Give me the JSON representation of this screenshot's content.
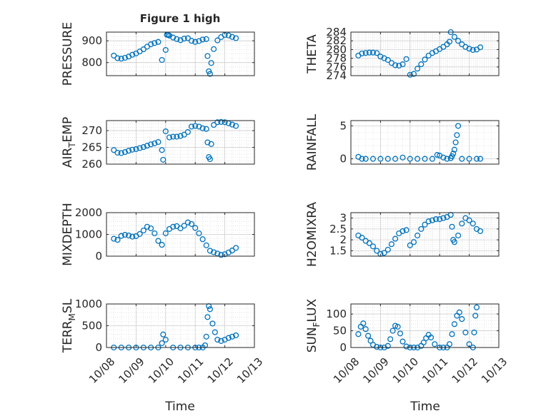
{
  "figure": {
    "title": "Figure 1 high",
    "x_tick_labels": [
      "10/08",
      "10/09",
      "10/10",
      "10/11",
      "10/12",
      "10/13"
    ],
    "x_label": "Time"
  },
  "colors": {
    "marker": "#0072bd",
    "axes": "#262626",
    "grid": "#dfdfdf"
  },
  "chart_data": [
    {
      "type": "scatter",
      "id": "pressure",
      "ylabel": "PRESSURE",
      "title": "Figure 1 high",
      "xlabel": "",
      "xlim": [
        "10/08",
        "10/13"
      ],
      "ylim": [
        740,
        940
      ],
      "yticks": [
        800,
        900
      ],
      "ytick_labels": [
        "800",
        "900"
      ],
      "grid": true,
      "x": [
        "10/08 06:00",
        "10/08 09:00",
        "10/08 12:00",
        "10/08 15:00",
        "10/08 18:00",
        "10/08 21:00",
        "10/09 00:00",
        "10/09 03:00",
        "10/09 06:00",
        "10/09 09:00",
        "10/09 12:00",
        "10/09 15:00",
        "10/09 18:00",
        "10/09 21:00",
        "10/10 00:00",
        "10/10 01:00",
        "10/10 02:00",
        "10/10 03:00",
        "10/10 06:00",
        "10/10 09:00",
        "10/10 12:00",
        "10/10 15:00",
        "10/10 18:00",
        "10/10 21:00",
        "10/11 00:00",
        "10/11 03:00",
        "10/11 06:00",
        "10/11 09:00",
        "10/11 10:00",
        "10/11 11:00",
        "10/11 12:00",
        "10/11 13:00",
        "10/11 15:00",
        "10/11 18:00",
        "10/11 21:00",
        "10/12 00:00",
        "10/12 03:00",
        "10/12 06:00",
        "10/12 09:00"
      ],
      "y": [
        832,
        820,
        818,
        822,
        828,
        836,
        842,
        851,
        861,
        873,
        884,
        890,
        895,
        812,
        858,
        928,
        927,
        924,
        915,
        908,
        903,
        910,
        912,
        900,
        895,
        899,
        906,
        908,
        830,
        760,
        748,
        798,
        862,
        902,
        917,
        927,
        925,
        918,
        912
      ]
    },
    {
      "type": "scatter",
      "id": "theta",
      "ylabel": "THETA",
      "xlabel": "",
      "xlim": [
        "10/08",
        "10/13"
      ],
      "ylim": [
        274,
        284
      ],
      "yticks": [
        274,
        276,
        278,
        280,
        282,
        284
      ],
      "ytick_labels": [
        "274",
        "276",
        "278",
        "280",
        "282",
        "284"
      ],
      "grid": true,
      "x": [
        "10/08 06:00",
        "10/08 09:00",
        "10/08 12:00",
        "10/08 15:00",
        "10/08 18:00",
        "10/08 21:00",
        "10/09 00:00",
        "10/09 03:00",
        "10/09 06:00",
        "10/09 09:00",
        "10/09 12:00",
        "10/09 15:00",
        "10/09 18:00",
        "10/09 21:00",
        "10/10 00:00",
        "10/10 03:00",
        "10/10 06:00",
        "10/10 09:00",
        "10/10 12:00",
        "10/10 15:00",
        "10/10 18:00",
        "10/10 21:00",
        "10/11 00:00",
        "10/11 03:00",
        "10/11 06:00",
        "10/11 08:00",
        "10/11 09:00",
        "10/11 12:00",
        "10/11 15:00",
        "10/11 18:00",
        "10/11 21:00",
        "10/12 00:00",
        "10/12 03:00",
        "10/12 06:00",
        "10/12 09:00"
      ],
      "y": [
        278.6,
        279.1,
        279.2,
        279.3,
        279.3,
        279.2,
        278.4,
        278.0,
        277.6,
        276.9,
        276.4,
        276.3,
        276.6,
        277.8,
        274.2,
        274.4,
        275.6,
        276.6,
        277.7,
        278.6,
        279.2,
        279.6,
        280.1,
        280.6,
        281.2,
        281.8,
        284.0,
        282.9,
        282.0,
        281.2,
        280.6,
        280.2,
        279.9,
        280.0,
        280.5
      ]
    },
    {
      "type": "scatter",
      "id": "air_temp",
      "ylabel": "AIR_TEMP",
      "ylabel_main": "AIR",
      "ylabel_sub": "T",
      "ylabel_rest": "EMP",
      "xlabel": "",
      "xlim": [
        "10/08",
        "10/13"
      ],
      "ylim": [
        260,
        273
      ],
      "yticks": [
        260,
        265,
        270
      ],
      "ytick_labels": [
        "260",
        "265",
        "270"
      ],
      "grid": true,
      "x": [
        "10/08 06:00",
        "10/08 09:00",
        "10/08 12:00",
        "10/08 15:00",
        "10/08 18:00",
        "10/08 21:00",
        "10/09 00:00",
        "10/09 03:00",
        "10/09 06:00",
        "10/09 09:00",
        "10/09 12:00",
        "10/09 15:00",
        "10/09 18:00",
        "10/09 21:00",
        "10/09 22:00",
        "10/10 00:00",
        "10/10 03:00",
        "10/10 06:00",
        "10/10 09:00",
        "10/10 12:00",
        "10/10 15:00",
        "10/10 18:00",
        "10/10 21:00",
        "10/11 00:00",
        "10/11 03:00",
        "10/11 06:00",
        "10/11 09:00",
        "10/11 10:00",
        "10/11 11:00",
        "10/11 12:00",
        "10/11 13:00",
        "10/11 15:00",
        "10/11 18:00",
        "10/11 21:00",
        "10/12 00:00",
        "10/12 03:00",
        "10/12 06:00",
        "10/12 09:00"
      ],
      "y": [
        264.2,
        263.4,
        263.3,
        263.6,
        264.0,
        264.3,
        264.5,
        264.8,
        265.1,
        265.5,
        265.9,
        266.2,
        266.6,
        264.2,
        261.3,
        269.8,
        268.0,
        268.2,
        268.2,
        268.4,
        268.8,
        269.6,
        271.2,
        271.4,
        271.2,
        270.7,
        270.5,
        266.5,
        262.1,
        261.5,
        266.0,
        271.7,
        272.5,
        272.6,
        272.5,
        272.2,
        271.8,
        271.4
      ]
    },
    {
      "type": "scatter",
      "id": "rainfall",
      "ylabel": "RAINFALL",
      "xlabel": "",
      "xlim": [
        "10/08",
        "10/13"
      ],
      "ylim": [
        -0.8,
        5.8
      ],
      "yticks": [
        0,
        5
      ],
      "ytick_labels": [
        "0",
        "5"
      ],
      "grid": true,
      "x": [
        "10/08 06:00",
        "10/08 09:00",
        "10/08 12:00",
        "10/08 18:00",
        "10/09 00:00",
        "10/09 06:00",
        "10/09 12:00",
        "10/09 18:00",
        "10/10 00:00",
        "10/10 06:00",
        "10/10 12:00",
        "10/10 18:00",
        "10/10 22:00",
        "10/11 00:00",
        "10/11 03:00",
        "10/11 06:00",
        "10/11 09:00",
        "10/11 10:00",
        "10/11 11:00",
        "10/11 12:00",
        "10/11 13:00",
        "10/11 14:00",
        "10/11 15:00",
        "10/11 18:00",
        "10/12 00:00",
        "10/12 06:00",
        "10/12 09:00"
      ],
      "y": [
        0.3,
        0.0,
        0.0,
        0.0,
        0.0,
        0.0,
        0.0,
        0.2,
        0.0,
        0.0,
        0.0,
        0.0,
        0.6,
        0.5,
        0.2,
        0.0,
        0.1,
        0.4,
        0.8,
        1.4,
        2.5,
        3.6,
        5.0,
        0.0,
        0.0,
        0.0,
        0.0
      ]
    },
    {
      "type": "scatter",
      "id": "mixdepth",
      "ylabel": "MIXDEPTH",
      "xlabel": "",
      "xlim": [
        "10/08",
        "10/13"
      ],
      "ylim": [
        0,
        2000
      ],
      "yticks": [
        0,
        1000,
        2000
      ],
      "ytick_labels": [
        "0",
        "1000",
        "2000"
      ],
      "grid": true,
      "x": [
        "10/08 06:00",
        "10/08 09:00",
        "10/08 12:00",
        "10/08 15:00",
        "10/08 18:00",
        "10/08 21:00",
        "10/09 00:00",
        "10/09 03:00",
        "10/09 06:00",
        "10/09 09:00",
        "10/09 12:00",
        "10/09 15:00",
        "10/09 18:00",
        "10/09 21:00",
        "10/10 00:00",
        "10/10 03:00",
        "10/10 06:00",
        "10/10 09:00",
        "10/10 12:00",
        "10/10 15:00",
        "10/10 18:00",
        "10/10 21:00",
        "10/11 00:00",
        "10/11 03:00",
        "10/11 06:00",
        "10/11 09:00",
        "10/11 12:00",
        "10/11 15:00",
        "10/11 18:00",
        "10/11 21:00",
        "10/12 00:00",
        "10/12 03:00",
        "10/12 06:00",
        "10/12 09:00"
      ],
      "y": [
        800,
        750,
        930,
        980,
        950,
        900,
        920,
        1020,
        1180,
        1350,
        1280,
        1050,
        700,
        520,
        1050,
        1250,
        1350,
        1380,
        1280,
        1400,
        1550,
        1480,
        1300,
        1050,
        780,
        500,
        250,
        180,
        120,
        60,
        90,
        170,
        260,
        380
      ]
    },
    {
      "type": "scatter",
      "id": "h2omixra",
      "ylabel": "H2OMIXRA",
      "xlabel": "",
      "xlim": [
        "10/08",
        "10/13"
      ],
      "ylim": [
        1.25,
        3.25
      ],
      "yticks": [
        1.5,
        2,
        2.5,
        3
      ],
      "ytick_labels": [
        "1.5",
        "2",
        "2.5",
        "3"
      ],
      "grid": true,
      "x": [
        "10/08 06:00",
        "10/08 09:00",
        "10/08 12:00",
        "10/08 15:00",
        "10/08 18:00",
        "10/08 21:00",
        "10/09 00:00",
        "10/09 03:00",
        "10/09 06:00",
        "10/09 09:00",
        "10/09 12:00",
        "10/09 15:00",
        "10/09 18:00",
        "10/09 21:00",
        "10/10 00:00",
        "10/10 03:00",
        "10/10 06:00",
        "10/10 09:00",
        "10/10 12:00",
        "10/10 15:00",
        "10/10 18:00",
        "10/10 21:00",
        "10/11 00:00",
        "10/11 03:00",
        "10/11 06:00",
        "10/11 09:00",
        "10/11 10:00",
        "10/11 11:00",
        "10/11 12:00",
        "10/11 15:00",
        "10/11 18:00",
        "10/11 21:00",
        "10/12 00:00",
        "10/12 03:00",
        "10/12 06:00",
        "10/12 09:00"
      ],
      "y": [
        2.2,
        2.1,
        1.95,
        1.85,
        1.7,
        1.5,
        1.35,
        1.4,
        1.55,
        1.8,
        2.05,
        2.3,
        2.4,
        2.45,
        1.75,
        1.9,
        2.2,
        2.5,
        2.7,
        2.85,
        2.9,
        2.95,
        2.95,
        3.0,
        3.05,
        3.15,
        2.6,
        2.0,
        1.9,
        2.2,
        2.75,
        3.0,
        2.9,
        2.75,
        2.5,
        2.4
      ]
    },
    {
      "type": "scatter",
      "id": "terr_msl",
      "ylabel": "TERR_MSL",
      "ylabel_main": "TERR",
      "ylabel_sub": "M",
      "ylabel_rest": "SL",
      "xlabel": "Time",
      "xlim": [
        "10/08",
        "10/13"
      ],
      "ylim": [
        0,
        1000
      ],
      "yticks": [
        0,
        500,
        1000
      ],
      "ytick_labels": [
        "0",
        "500",
        "1000"
      ],
      "xticks": [
        "10/08",
        "10/09",
        "10/10",
        "10/11",
        "10/12",
        "10/13"
      ],
      "grid": true,
      "x": [
        "10/08 06:00",
        "10/08 12:00",
        "10/08 18:00",
        "10/09 00:00",
        "10/09 06:00",
        "10/09 12:00",
        "10/09 18:00",
        "10/09 21:00",
        "10/09 22:00",
        "10/10 00:00",
        "10/10 06:00",
        "10/10 12:00",
        "10/10 18:00",
        "10/11 00:00",
        "10/11 03:00",
        "10/11 06:00",
        "10/11 08:00",
        "10/11 09:00",
        "10/11 10:00",
        "10/11 11:00",
        "10/11 12:00",
        "10/11 14:00",
        "10/11 16:00",
        "10/11 18:00",
        "10/11 21:00",
        "10/12 00:00",
        "10/12 03:00",
        "10/12 06:00",
        "10/12 09:00"
      ],
      "y": [
        0,
        0,
        0,
        0,
        0,
        0,
        0,
        100,
        300,
        180,
        0,
        0,
        0,
        0,
        0,
        0,
        50,
        250,
        700,
        950,
        880,
        550,
        350,
        180,
        150,
        180,
        220,
        250,
        280
      ]
    },
    {
      "type": "scatter",
      "id": "sun_flux",
      "ylabel": "SUN_FLUX",
      "ylabel_main": "SUN",
      "ylabel_sub": "F",
      "ylabel_rest": "LUX",
      "xlabel": "Time",
      "xlim": [
        "10/08",
        "10/13"
      ],
      "ylim": [
        0,
        130
      ],
      "yticks": [
        0,
        50,
        100
      ],
      "ytick_labels": [
        "0",
        "50",
        "100"
      ],
      "xticks": [
        "10/08",
        "10/09",
        "10/10",
        "10/11",
        "10/12",
        "10/13"
      ],
      "grid": true,
      "x": [
        "10/08 06:00",
        "10/08 08:00",
        "10/08 10:00",
        "10/08 12:00",
        "10/08 14:00",
        "10/08 16:00",
        "10/08 18:00",
        "10/08 21:00",
        "10/09 00:00",
        "10/09 03:00",
        "10/09 06:00",
        "10/09 08:00",
        "10/09 10:00",
        "10/09 12:00",
        "10/09 14:00",
        "10/09 16:00",
        "10/09 18:00",
        "10/09 21:00",
        "10/10 00:00",
        "10/10 03:00",
        "10/10 06:00",
        "10/10 09:00",
        "10/10 11:00",
        "10/10 13:00",
        "10/10 15:00",
        "10/10 17:00",
        "10/10 20:00",
        "10/11 00:00",
        "10/11 03:00",
        "10/11 06:00",
        "10/11 08:00",
        "10/11 10:00",
        "10/11 12:00",
        "10/11 14:00",
        "10/11 16:00",
        "10/11 18:00",
        "10/11 21:00",
        "10/12 00:00",
        "10/12 03:00",
        "10/12 04:00",
        "10/12 05:00",
        "10/12 06:00"
      ],
      "y": [
        40,
        62,
        72,
        55,
        35,
        20,
        8,
        2,
        0,
        0,
        5,
        25,
        50,
        65,
        62,
        42,
        18,
        3,
        0,
        0,
        0,
        5,
        15,
        28,
        38,
        30,
        10,
        0,
        0,
        0,
        10,
        40,
        70,
        95,
        105,
        85,
        45,
        10,
        0,
        45,
        95,
        120
      ]
    }
  ]
}
